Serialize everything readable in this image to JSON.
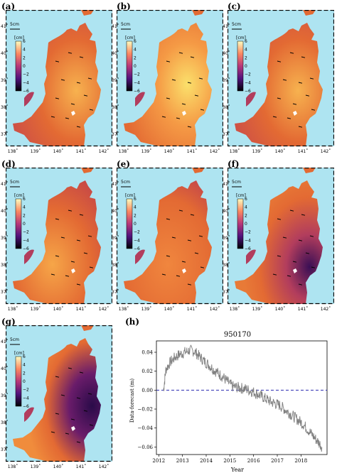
{
  "panels": [
    {
      "id": "a",
      "label": "(a)",
      "variant": "warm-east"
    },
    {
      "id": "b",
      "label": "(b)",
      "variant": "hot-east"
    },
    {
      "id": "c",
      "label": "(c)",
      "variant": "warm-east"
    },
    {
      "id": "d",
      "label": "(d)",
      "variant": "warm-center"
    },
    {
      "id": "e",
      "label": "(e)",
      "variant": "mild"
    },
    {
      "id": "f",
      "label": "(f)",
      "variant": "cool-east"
    },
    {
      "id": "g",
      "label": "(g)",
      "variant": "cold-east"
    }
  ],
  "map": {
    "scale_label": "5cm",
    "colorbar_unit": "[cm]",
    "colorbar_ticks": [
      "6",
      "4",
      "2",
      "0",
      "−2",
      "−4",
      "−6"
    ],
    "lon_ticks": [
      "138˚",
      "139˚",
      "140˚",
      "141˚",
      "142˚"
    ],
    "lat_ticks": [
      "41˚",
      "40˚",
      "39˚",
      "38˚",
      "37˚"
    ],
    "colors": {
      "sea": "#aee4f1",
      "warm": "#e36a33",
      "hot": "#fbe06b",
      "mid": "#b23d5d",
      "cold": "#2a0b49"
    }
  },
  "chart_label": "(h)",
  "chart_data": {
    "type": "line",
    "title": "950170",
    "xlabel": "Year",
    "ylabel": "Data-forecast (m)",
    "xlim": [
      2011.9,
      2019.1
    ],
    "ylim": [
      -0.068,
      0.052
    ],
    "xticks": [
      "2012",
      "2013",
      "2014",
      "2015",
      "2016",
      "2017",
      "2018"
    ],
    "xtick_values": [
      2012,
      2013,
      2014,
      2015,
      2016,
      2017,
      2018
    ],
    "yticks": [
      "0.04",
      "0.02",
      "0.00",
      "−0.02",
      "−0.04",
      "−0.06"
    ],
    "ytick_values": [
      0.04,
      0.02,
      0.0,
      -0.02,
      -0.04,
      -0.06
    ],
    "reference_line": {
      "y": 0.0,
      "style": "dashed",
      "color": "#2b2bb0"
    },
    "series_color": "#7f7f7f",
    "x": [
      2012.2,
      2012.3,
      2012.5,
      2012.7,
      2012.9,
      2013.1,
      2013.3,
      2013.5,
      2013.7,
      2013.9,
      2014.1,
      2014.3,
      2014.5,
      2014.7,
      2014.9,
      2015.1,
      2015.3,
      2015.5,
      2015.7,
      2015.9,
      2016.1,
      2016.3,
      2016.5,
      2016.7,
      2016.9,
      2017.1,
      2017.3,
      2017.5,
      2017.7,
      2017.9,
      2018.1,
      2018.3,
      2018.5,
      2018.7,
      2018.9
    ],
    "y": [
      0.0,
      0.022,
      0.03,
      0.035,
      0.038,
      0.04,
      0.042,
      0.041,
      0.036,
      0.031,
      0.027,
      0.022,
      0.018,
      0.014,
      0.009,
      0.004,
      0.003,
      0.002,
      0.001,
      -0.001,
      -0.003,
      -0.006,
      -0.009,
      -0.012,
      -0.014,
      -0.016,
      -0.02,
      -0.024,
      -0.028,
      -0.032,
      -0.036,
      -0.042,
      -0.048,
      -0.054,
      -0.06
    ]
  }
}
